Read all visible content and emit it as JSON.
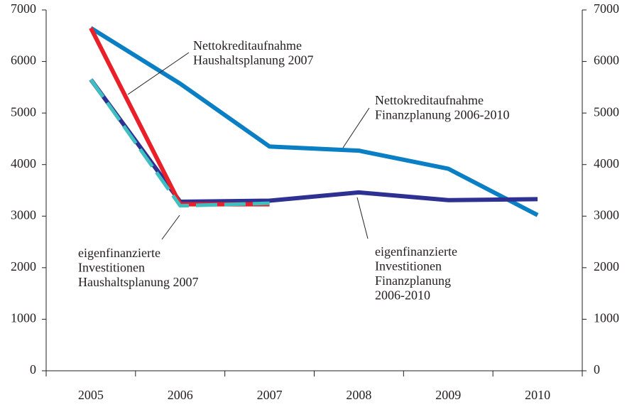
{
  "chart_data": {
    "type": "line",
    "categories": [
      "2005",
      "2006",
      "2007",
      "2008",
      "2009",
      "2010"
    ],
    "ylim": [
      0,
      7000
    ],
    "yticks": [
      0,
      1000,
      2000,
      3000,
      4000,
      5000,
      6000,
      7000
    ],
    "y2lim": [
      0,
      7000
    ],
    "y2ticks": [
      0,
      1000,
      2000,
      3000,
      4000,
      5000,
      6000,
      7000
    ],
    "series": [
      {
        "name": [
          "Nettokreditaufnahme",
          "Finanzplanung 2006-2010"
        ],
        "color": "#0a7fc4",
        "dash": false,
        "values": [
          6650,
          5570,
          4350,
          4270,
          3920,
          3020
        ]
      },
      {
        "name": [
          "eigenfinanzierte",
          "Investitionen",
          "Finanzplanung",
          "2006-2010"
        ],
        "color": "#2e3192",
        "dash": false,
        "values": [
          5650,
          3280,
          3300,
          3460,
          3310,
          3330
        ]
      },
      {
        "name": [
          "Nettokreditaufnahme",
          "Haushaltsplanung 2007"
        ],
        "color": "#e8202a",
        "dash": false,
        "values": [
          6650,
          3230,
          3230,
          null,
          null,
          null
        ]
      },
      {
        "name": [
          "eigenfinanzierte",
          "Investitionen",
          "Haushaltsplanung 2007"
        ],
        "color": "#3fbfbf",
        "dash": true,
        "values": [
          5650,
          3200,
          3250,
          null,
          null,
          null
        ]
      }
    ]
  }
}
